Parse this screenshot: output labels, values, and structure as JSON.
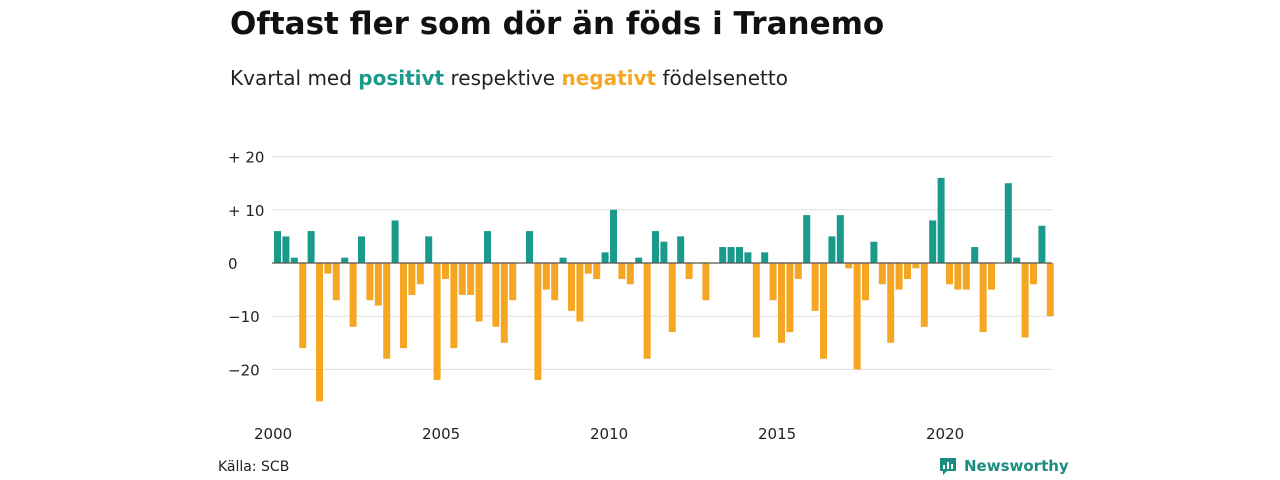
{
  "title": "Oftast fler som dör än föds i Tranemo",
  "subtitle": {
    "prefix": "Kvartal med ",
    "positive_word": "positivt",
    "middle": " respektive ",
    "negative_word": "negativt",
    "suffix": " födelsenetto"
  },
  "source": "Källa: SCB",
  "brand": {
    "name": "Newsworthy",
    "icon": "newsworthy-logo-icon"
  },
  "colors": {
    "positive": "#1a9a8a",
    "negative": "#f5a623",
    "grid": "#dddddd",
    "zero_line": "#555555"
  },
  "chart_data": {
    "type": "bar",
    "title": "Oftast fler som dör än föds i Tranemo",
    "subtitle": "Kvartal med positivt respektive negativt födelsenetto",
    "xlabel": "",
    "ylabel": "",
    "ylim": [
      -28,
      21
    ],
    "yticks": [
      {
        "value": 20,
        "label": "+ 20"
      },
      {
        "value": 10,
        "label": "+ 10"
      },
      {
        "value": 0,
        "label": "0"
      },
      {
        "value": -10,
        "label": "−10"
      },
      {
        "value": -20,
        "label": "−20"
      }
    ],
    "xticks": [
      "2000",
      "2005",
      "2010",
      "2015",
      "2020"
    ],
    "grid": true,
    "start_year": 2000,
    "values": [
      6,
      5,
      1,
      -16,
      6,
      -26,
      -2,
      -7,
      1,
      -12,
      5,
      -7,
      -8,
      -18,
      8,
      -16,
      -6,
      -4,
      5,
      -22,
      -3,
      -16,
      -6,
      -6,
      -11,
      6,
      -12,
      -15,
      -7,
      0,
      6,
      -22,
      -5,
      -7,
      1,
      -9,
      -11,
      -2,
      -3,
      2,
      10,
      -3,
      -4,
      1,
      -18,
      6,
      4,
      -13,
      5,
      -3,
      0,
      -7,
      0,
      3,
      3,
      3,
      2,
      -14,
      2,
      -7,
      -15,
      -13,
      -3,
      9,
      -9,
      -18,
      5,
      9,
      -1,
      -20,
      -7,
      4,
      -4,
      -15,
      -5,
      -3,
      -1,
      -12,
      8,
      16,
      -4,
      -5,
      -5,
      3,
      -13,
      -5,
      0,
      15,
      1,
      -14,
      -4,
      7,
      -10
    ]
  }
}
